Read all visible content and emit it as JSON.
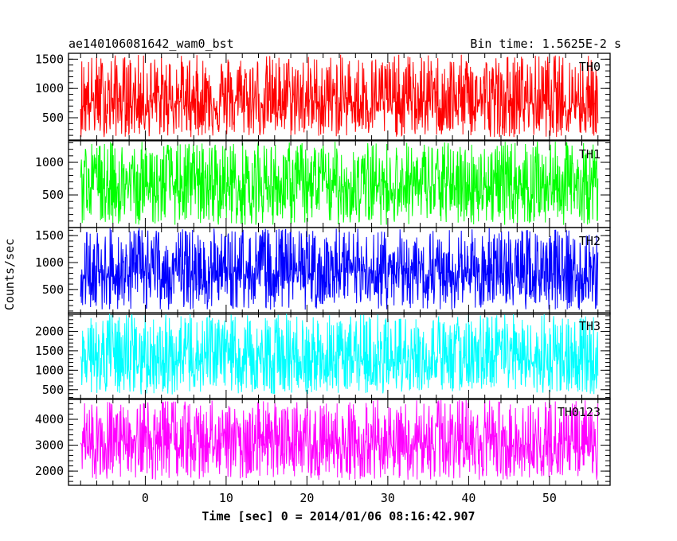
{
  "header": {
    "title": "ae140106081642_wam0_bst",
    "bin_time": "Bin time: 1.5625E-2 s"
  },
  "axes": {
    "ylabel": "Counts/sec",
    "xlabel": "Time [sec] 0 = 2014/01/06 08:16:42.907"
  },
  "chart_data": {
    "type": "line",
    "title": "ae140106081642_wam0_bst",
    "xlabel": "Time [sec] 0 = 2014/01/06 08:16:42.907",
    "ylabel": "Counts/sec",
    "xlim": [
      -9.5,
      57.5
    ],
    "x_ticks": [
      0,
      10,
      20,
      30,
      40,
      50
    ],
    "x_data_range": [
      -8,
      56
    ],
    "grid": false,
    "panels": [
      {
        "name": "TH0",
        "color": "#ff0000",
        "ylim": [
          120,
          1600
        ],
        "yticks": [
          500,
          1000,
          1500
        ],
        "mean": 780,
        "low": 170,
        "high": 1580
      },
      {
        "name": "TH1",
        "color": "#00ff00",
        "ylim": [
          0,
          1330
        ],
        "yticks": [
          500,
          1000
        ],
        "mean": 640,
        "low": 40,
        "high": 1320
      },
      {
        "name": "TH2",
        "color": "#0000ff",
        "ylim": [
          40,
          1650
        ],
        "yticks": [
          500,
          1000,
          1500
        ],
        "mean": 800,
        "low": 120,
        "high": 1640
      },
      {
        "name": "TH3",
        "color": "#00ffff",
        "ylim": [
          250,
          2480
        ],
        "yticks": [
          500,
          1000,
          1500,
          2000
        ],
        "mean": 1250,
        "low": 380,
        "high": 2450
      },
      {
        "name": "TH0123",
        "color": "#ff00ff",
        "ylim": [
          1450,
          4800
        ],
        "yticks": [
          2000,
          3000,
          4000
        ],
        "mean": 3050,
        "low": 1650,
        "high": 4750
      }
    ]
  }
}
